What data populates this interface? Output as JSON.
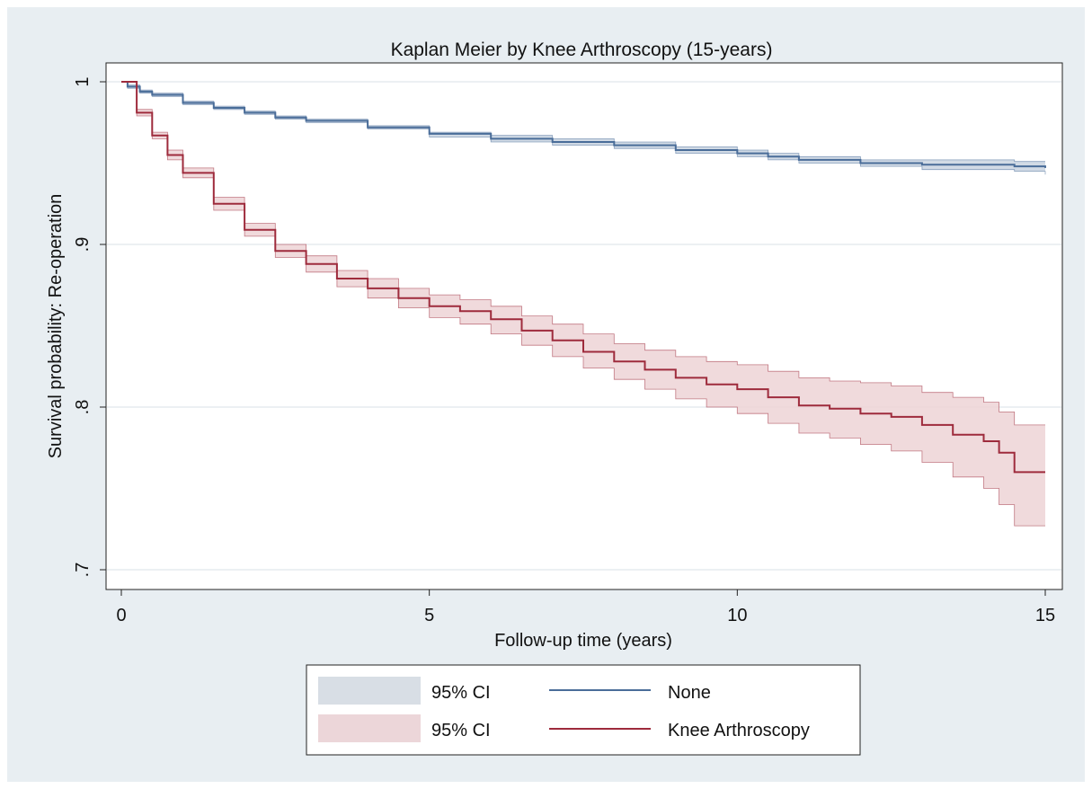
{
  "chart_data": {
    "type": "line",
    "title": "Kaplan Meier by Knee Arthroscopy (15-years)",
    "xlabel": "Follow-up time (years)",
    "ylabel": "Survival probability: Re-operation",
    "xlim": [
      0,
      15
    ],
    "ylim": [
      0.7,
      1.0
    ],
    "x_ticks": [
      0,
      5,
      10,
      15
    ],
    "x_tick_labels": [
      "0",
      "5",
      "10",
      "15"
    ],
    "y_ticks": [
      0.7,
      0.8,
      0.9,
      1.0
    ],
    "y_tick_labels": [
      ".7",
      ".8",
      ".9",
      "1"
    ],
    "grid": true,
    "legend_position": "bottom",
    "colors": {
      "none_line": "#4a6d99",
      "none_band": "#c9d4e0",
      "knee_line": "#9e2b3c",
      "knee_band": "#edd3d6",
      "background": "#e8eef2",
      "plot_background": "#ffffff"
    },
    "legend": [
      {
        "band_label": "95% CI",
        "line_label": "None",
        "band_color": "#d8dee5",
        "line_color": "#4a6d99"
      },
      {
        "band_label": "95% CI",
        "line_label": "Knee Arthroscopy",
        "band_color": "#ecd6d9",
        "line_color": "#9e2b3c"
      }
    ],
    "series": [
      {
        "name": "None",
        "x": [
          0,
          0.1,
          0.3,
          0.5,
          1,
          1.5,
          2,
          2.5,
          3,
          4,
          5,
          6,
          7,
          8,
          9,
          10,
          10.5,
          11,
          12,
          13,
          14,
          14.5,
          15
        ],
        "y": [
          1.0,
          0.997,
          0.994,
          0.992,
          0.987,
          0.984,
          0.981,
          0.978,
          0.976,
          0.972,
          0.968,
          0.965,
          0.963,
          0.961,
          0.958,
          0.956,
          0.954,
          0.952,
          0.95,
          0.949,
          0.949,
          0.948,
          0.947
        ],
        "lower": [
          1.0,
          0.996,
          0.993,
          0.991,
          0.986,
          0.983,
          0.98,
          0.977,
          0.975,
          0.971,
          0.966,
          0.963,
          0.961,
          0.959,
          0.956,
          0.954,
          0.952,
          0.95,
          0.948,
          0.946,
          0.946,
          0.945,
          0.943
        ],
        "upper": [
          1.0,
          0.998,
          0.995,
          0.993,
          0.988,
          0.985,
          0.982,
          0.979,
          0.977,
          0.973,
          0.969,
          0.967,
          0.965,
          0.963,
          0.96,
          0.958,
          0.956,
          0.954,
          0.952,
          0.952,
          0.952,
          0.951,
          0.951
        ]
      },
      {
        "name": "Knee Arthroscopy",
        "x": [
          0,
          0.25,
          0.5,
          0.75,
          1,
          1.5,
          2,
          2.5,
          3,
          3.5,
          4,
          4.5,
          5,
          5.5,
          6,
          6.5,
          7,
          7.5,
          8,
          8.5,
          9,
          9.5,
          10,
          10.5,
          11,
          11.5,
          12,
          12.5,
          13,
          13.5,
          14,
          14.25,
          14.5,
          15
        ],
        "y": [
          1.0,
          0.981,
          0.967,
          0.955,
          0.944,
          0.925,
          0.909,
          0.896,
          0.888,
          0.879,
          0.873,
          0.867,
          0.862,
          0.859,
          0.854,
          0.847,
          0.841,
          0.834,
          0.828,
          0.823,
          0.818,
          0.814,
          0.811,
          0.806,
          0.801,
          0.799,
          0.796,
          0.794,
          0.789,
          0.783,
          0.779,
          0.772,
          0.76,
          0.76
        ],
        "lower": [
          1.0,
          0.979,
          0.965,
          0.952,
          0.941,
          0.921,
          0.905,
          0.892,
          0.883,
          0.874,
          0.867,
          0.861,
          0.855,
          0.851,
          0.845,
          0.838,
          0.831,
          0.824,
          0.817,
          0.811,
          0.805,
          0.8,
          0.796,
          0.79,
          0.784,
          0.781,
          0.777,
          0.773,
          0.766,
          0.757,
          0.75,
          0.74,
          0.727,
          0.727
        ],
        "upper": [
          1.0,
          0.983,
          0.969,
          0.958,
          0.947,
          0.929,
          0.913,
          0.9,
          0.893,
          0.884,
          0.879,
          0.873,
          0.869,
          0.866,
          0.862,
          0.856,
          0.851,
          0.845,
          0.839,
          0.835,
          0.831,
          0.828,
          0.826,
          0.822,
          0.818,
          0.816,
          0.815,
          0.813,
          0.809,
          0.806,
          0.803,
          0.797,
          0.789,
          0.789
        ]
      }
    ]
  }
}
